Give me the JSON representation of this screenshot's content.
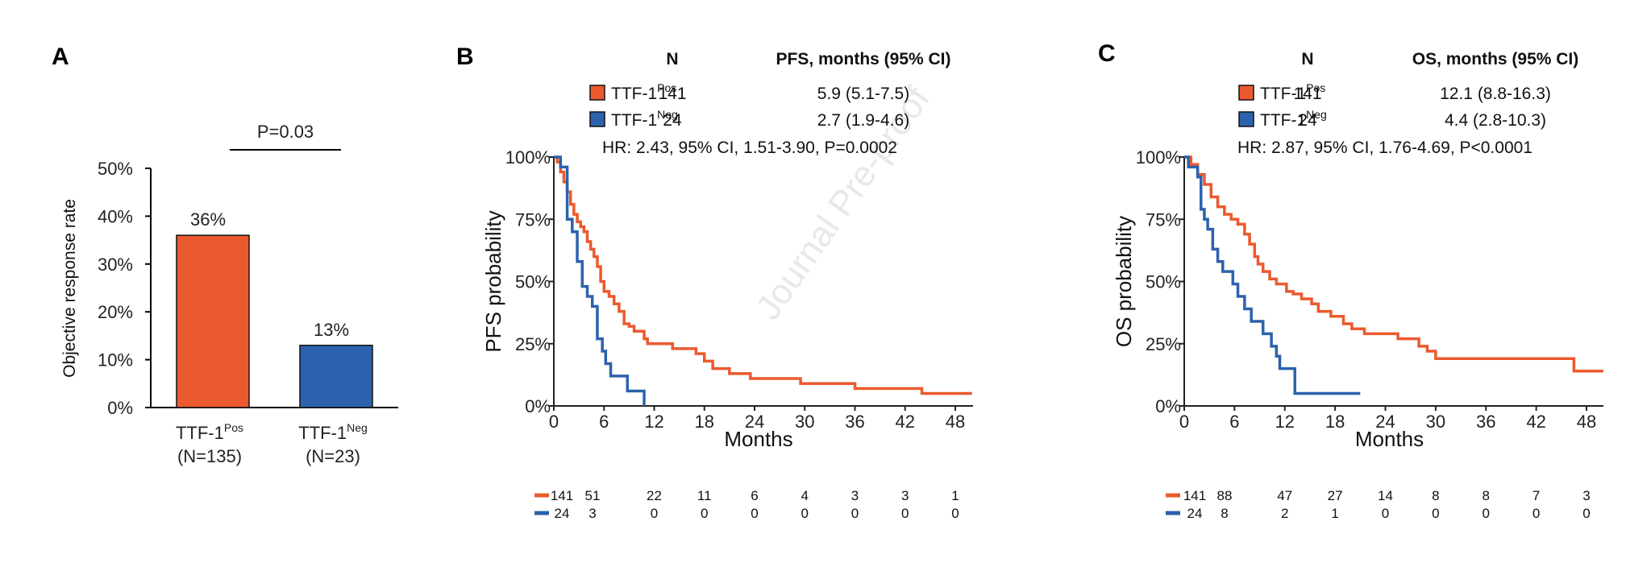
{
  "panels": {
    "A": {
      "letter": "A"
    },
    "B": {
      "letter": "B"
    },
    "C": {
      "letter": "C"
    }
  },
  "watermark": "Journal Pre-proof",
  "colors": {
    "pos": "#EB5A2E",
    "neg": "#2C62AD",
    "axis": "#222222"
  },
  "chart_data": [
    {
      "type": "bar",
      "panel": "A",
      "title": "",
      "ylabel": "Objective response rate",
      "xlabel": "",
      "ylim": [
        0,
        50
      ],
      "yticks": [
        "0%",
        "10%",
        "20%",
        "30%",
        "40%",
        "50%"
      ],
      "categories": [
        {
          "base": "TTF-1",
          "sup": "Pos",
          "n": "(N=135)"
        },
        {
          "base": "TTF-1",
          "sup": "Neg",
          "n": "(N=23)"
        }
      ],
      "values": [
        36,
        13
      ],
      "data_labels": [
        "36%",
        "13%"
      ],
      "annotation": "P=0.03",
      "grid": false
    },
    {
      "type": "line",
      "subtype": "kaplan-meier",
      "panel": "B",
      "ylabel": "PFS probability",
      "xlabel": "Months",
      "xlim": [
        0,
        50
      ],
      "ylim": [
        0,
        100
      ],
      "xticks": [
        0,
        6,
        12,
        18,
        24,
        30,
        36,
        42,
        48
      ],
      "yticks": [
        "0%",
        "25%",
        "50%",
        "75%",
        "100%"
      ],
      "table_header": {
        "n": "N",
        "metric": "PFS, months (95% CI)"
      },
      "legend": [
        {
          "base": "TTF-1",
          "sup": "Pos",
          "n": "141",
          "median": "5.9 (5.1-7.5)"
        },
        {
          "base": "TTF-1",
          "sup": "Neg",
          "n": "24",
          "median": "2.7 (1.9-4.6)"
        }
      ],
      "hr_text": "HR: 2.43, 95% CI, 1.51-3.90, P=0.0002",
      "series": [
        {
          "name": "TTF-1 Pos",
          "x": [
            0,
            0.4,
            0.8,
            1.2,
            1.6,
            2.0,
            2.4,
            2.8,
            3.2,
            3.6,
            4.0,
            4.4,
            4.8,
            5.2,
            5.6,
            6.0,
            6.6,
            7.2,
            7.8,
            8.4,
            9.0,
            9.6,
            10.2,
            10.8,
            11.2,
            13.5,
            14.2,
            16.0,
            17.0,
            18.0,
            19.0,
            21.0,
            23.5,
            29.5,
            36.0,
            44.0,
            50
          ],
          "y": [
            100,
            98,
            94,
            90,
            86,
            81,
            77,
            74,
            72,
            70,
            66,
            63,
            60,
            56,
            50,
            46,
            44,
            41,
            38,
            33,
            32,
            30,
            30,
            27,
            25,
            25,
            23,
            23,
            21,
            18,
            15,
            13,
            11,
            9,
            7,
            5,
            5
          ]
        },
        {
          "name": "TTF-1 Neg",
          "x": [
            0,
            0.8,
            1.6,
            2.2,
            2.8,
            3.4,
            4.0,
            4.6,
            5.2,
            5.8,
            6.2,
            6.8,
            8.8,
            10.8
          ],
          "y": [
            100,
            96,
            75,
            70,
            58,
            48,
            44,
            40,
            27,
            22,
            17,
            12,
            6,
            0
          ]
        }
      ],
      "at_risk": {
        "times": [
          0,
          6,
          12,
          18,
          24,
          30,
          36,
          42,
          48
        ],
        "rows": [
          {
            "name": "TTF-1 Pos",
            "values": [
              141,
              51,
              22,
              11,
              6,
              4,
              3,
              3,
              1
            ]
          },
          {
            "name": "TTF-1 Neg",
            "values": [
              24,
              3,
              0,
              0,
              0,
              0,
              0,
              0,
              0
            ]
          }
        ]
      }
    },
    {
      "type": "line",
      "subtype": "kaplan-meier",
      "panel": "C",
      "ylabel": "OS probability",
      "xlabel": "Months",
      "xlim": [
        0,
        50
      ],
      "ylim": [
        0,
        100
      ],
      "xticks": [
        0,
        6,
        12,
        18,
        24,
        30,
        36,
        42,
        48
      ],
      "yticks": [
        "0%",
        "25%",
        "50%",
        "75%",
        "100%"
      ],
      "table_header": {
        "n": "N",
        "metric": "OS, months (95% CI)"
      },
      "legend": [
        {
          "base": "TTF-1",
          "sup": "Pos",
          "n": "141",
          "median": "12.1 (8.8-16.3)"
        },
        {
          "base": "TTF-1",
          "sup": "Neg",
          "n": "24",
          "median": "4.4 (2.8-10.3)"
        }
      ],
      "hr_text": "HR: 2.87, 95% CI, 1.76-4.69, P<0.0001",
      "series": [
        {
          "name": "TTF-1 Pos",
          "x": [
            0,
            0.8,
            1.6,
            2.4,
            3.2,
            4.0,
            4.8,
            5.6,
            6.4,
            7.2,
            7.8,
            8.4,
            8.8,
            9.4,
            10.2,
            11.0,
            12.2,
            13.0,
            14.0,
            15.2,
            16.0,
            17.5,
            19.0,
            20.0,
            21.5,
            25.5,
            28.0,
            29.0,
            30.0,
            46.5,
            50
          ],
          "y": [
            100,
            97,
            93,
            89,
            84,
            80,
            77,
            75,
            73,
            69,
            65,
            60,
            57,
            54,
            51,
            49,
            46,
            45,
            43,
            41,
            38,
            36,
            33,
            31,
            29,
            27,
            24,
            22,
            19,
            14,
            14
          ]
        },
        {
          "name": "TTF-1 Neg",
          "x": [
            0,
            0.5,
            1.6,
            2.0,
            2.4,
            2.8,
            3.4,
            4.0,
            4.6,
            5.8,
            6.4,
            7.2,
            8.0,
            9.4,
            10.4,
            11.0,
            11.4,
            13.2,
            21.0
          ],
          "y": [
            100,
            96,
            92,
            79,
            75,
            71,
            63,
            58,
            54,
            49,
            44,
            39,
            34,
            29,
            24,
            20,
            15,
            5,
            5
          ]
        }
      ],
      "at_risk": {
        "times": [
          0,
          6,
          12,
          18,
          24,
          30,
          36,
          42,
          48
        ],
        "rows": [
          {
            "name": "TTF-1 Pos",
            "values": [
              141,
              88,
              47,
              27,
              14,
              8,
              8,
              7,
              3
            ]
          },
          {
            "name": "TTF-1 Neg",
            "values": [
              24,
              8,
              2,
              1,
              0,
              0,
              0,
              0,
              0
            ]
          }
        ]
      }
    }
  ]
}
